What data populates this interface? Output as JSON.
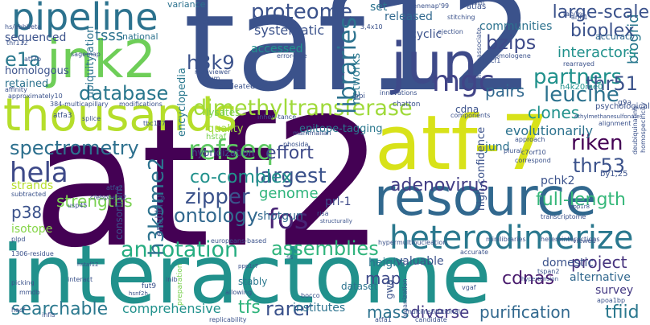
{
  "words": [
    {
      "text": "taf12",
      "color": "#3b528b"
    },
    {
      "text": "atf2",
      "color": "#440154"
    },
    {
      "text": "interactome",
      "color": "#21918c"
    },
    {
      "text": "resource",
      "color": "#31688e"
    },
    {
      "text": "atf-7",
      "color": "#d8e219"
    },
    {
      "text": "thousands",
      "color": "#b5de2b"
    },
    {
      "text": "pipeline",
      "color": "#2c728e"
    },
    {
      "text": "jnk2",
      "color": "#6ece58"
    },
    {
      "text": "heterodimerize",
      "color": "#2a788e"
    },
    {
      "text": "jun",
      "color": "#3e4a89"
    },
    {
      "text": "dimethyltransferase",
      "color": "#9fda3a"
    },
    {
      "text": "annotation",
      "color": "#26ad81"
    },
    {
      "text": "assemblies",
      "color": "#2fb47c"
    },
    {
      "text": "libraries",
      "color": "#2c728e"
    },
    {
      "text": "proteome",
      "color": "#3b528b"
    },
    {
      "text": "database",
      "color": "#2a788e"
    },
    {
      "text": "spectrometry",
      "color": "#2d708e"
    },
    {
      "text": "refseq",
      "color": "#5ec962"
    },
    {
      "text": "hela",
      "color": "#3e4a89"
    },
    {
      "text": "zipper",
      "color": "#3b528b"
    },
    {
      "text": "fos",
      "color": "#482475"
    },
    {
      "text": "largest",
      "color": "#3b528b"
    },
    {
      "text": "mgc",
      "color": "#414487"
    },
    {
      "text": "bzips",
      "color": "#3e4a89"
    },
    {
      "text": "partners",
      "color": "#21918c"
    },
    {
      "text": "leucine",
      "color": "#2c728e"
    },
    {
      "text": "riken",
      "color": "#440154"
    },
    {
      "text": "thr51",
      "color": "#3b528b"
    },
    {
      "text": "thr53",
      "color": "#3b528b"
    },
    {
      "text": "biogrid",
      "color": "#2a788e"
    },
    {
      "text": "bioplex",
      "color": "#3b528b"
    },
    {
      "text": "h3k9",
      "color": "#3b528b"
    },
    {
      "text": "e1a",
      "color": "#2a788e"
    },
    {
      "text": "tsss",
      "color": "#2c728e"
    },
    {
      "text": "adenovirus",
      "color": "#433e85"
    },
    {
      "text": "project",
      "color": "#46337e"
    },
    {
      "text": "h3k9me2",
      "color": "#2c728e"
    },
    {
      "text": "ontology",
      "color": "#31688e"
    },
    {
      "text": "genome",
      "color": "#2fb47c"
    },
    {
      "text": "effort",
      "color": "#3e4a89"
    },
    {
      "text": "co-complex",
      "color": "#21918c"
    },
    {
      "text": "full-length",
      "color": "#35b779"
    },
    {
      "text": "large-scale",
      "color": "#3b528b"
    },
    {
      "text": "interactors",
      "color": "#21918c"
    },
    {
      "text": "pairs",
      "color": "#31688e"
    },
    {
      "text": "clones",
      "color": "#21918c"
    },
    {
      "text": "cdnas",
      "color": "#481a6c"
    },
    {
      "text": "searchable",
      "color": "#2a788e"
    },
    {
      "text": "tfiid",
      "color": "#2a788e"
    },
    {
      "text": "purification",
      "color": "#31688e"
    },
    {
      "text": "diverse",
      "color": "#443983"
    },
    {
      "text": "mass",
      "color": "#2c728e"
    },
    {
      "text": "rarer",
      "color": "#3b528b"
    },
    {
      "text": "tfs",
      "color": "#2fb47c"
    },
    {
      "text": "comprehensive",
      "color": "#21918c"
    },
    {
      "text": "map",
      "color": "#3e4a89"
    },
    {
      "text": "strengths",
      "color": "#7ad151"
    },
    {
      "text": "p38",
      "color": "#3b528b"
    },
    {
      "text": "evolutionarily",
      "color": "#2c728e"
    },
    {
      "text": "systematic",
      "color": "#3b528b"
    },
    {
      "text": "communities",
      "color": "#2c728e"
    },
    {
      "text": "released",
      "color": "#31688e"
    },
    {
      "text": "networks",
      "color": "#2a788e"
    },
    {
      "text": "accessed",
      "color": "#21918c"
    },
    {
      "text": "cyclic",
      "color": "#3b528b"
    },
    {
      "text": "sequenced",
      "color": "#3b528b"
    },
    {
      "text": "homologous",
      "color": "#3b528b"
    },
    {
      "text": "retained",
      "color": "#2c728e"
    },
    {
      "text": "ubiquitylation",
      "color": "#2c728e"
    },
    {
      "text": "encyclopedia",
      "color": "#2a788e"
    },
    {
      "text": "high-confidence",
      "color": "#3b528b"
    },
    {
      "text": "epitope-tagging",
      "color": "#2a788e"
    },
    {
      "text": "quality",
      "color": "#9fda3a"
    },
    {
      "text": "hybridization",
      "color": "#3b528b"
    },
    {
      "text": "jund",
      "color": "#2c728e"
    },
    {
      "text": "pchk2",
      "color": "#3b528b"
    },
    {
      "text": "prl-1",
      "color": "#3e4a89"
    },
    {
      "text": "shotgun",
      "color": "#31688e"
    },
    {
      "text": "height",
      "color": "#2c728e"
    },
    {
      "text": "consortium",
      "color": "#3b528b"
    },
    {
      "text": "enabling",
      "color": "#3b528b"
    },
    {
      "text": "isotope",
      "color": "#86d549"
    },
    {
      "text": "alternative",
      "color": "#31688e"
    },
    {
      "text": "domestic",
      "color": "#3b528b"
    },
    {
      "text": "survey",
      "color": "#443983"
    },
    {
      "text": "valuable",
      "color": "#3b528b"
    },
    {
      "text": "dataset",
      "color": "#2c728e"
    },
    {
      "text": "institutes",
      "color": "#2c728e"
    },
    {
      "text": "gwa",
      "color": "#3b528b"
    },
    {
      "text": "stably",
      "color": "#2a788e"
    },
    {
      "text": "national",
      "color": "#2c728e"
    },
    {
      "text": "variance",
      "color": "#2c728e"
    },
    {
      "text": "set",
      "color": "#2c728e"
    },
    {
      "text": "atlas",
      "color": "#3b528b"
    },
    {
      "text": "accuracy",
      "color": "#31688e"
    },
    {
      "text": "psychological",
      "color": "#3b528b"
    },
    {
      "text": "cdna",
      "color": "#3b528b"
    },
    {
      "text": "approximately10",
      "color": "#3b528b"
    },
    {
      "text": "384-multicapillary",
      "color": "#3b528b"
    },
    {
      "text": "modifications",
      "color": "#3b528b"
    },
    {
      "text": "atfa3",
      "color": "#3b528b"
    },
    {
      "text": "splice",
      "color": "#3b528b"
    },
    {
      "text": "tbc1d7",
      "color": "#3b528b"
    },
    {
      "text": "lysates",
      "color": "#7ad151"
    },
    {
      "text": "hstaf",
      "color": "#7ad151"
    },
    {
      "text": "ppi",
      "color": "#3b528b"
    },
    {
      "text": "chatton",
      "color": "#3b528b"
    },
    {
      "text": "h4k20me0",
      "color": "#21918c"
    },
    {
      "text": "thr112",
      "color": "#3b528b"
    },
    {
      "text": "strands",
      "color": "#b5de2b"
    },
    {
      "text": "subtracted",
      "color": "#3b528b"
    },
    {
      "text": "usp45",
      "color": "#3b528b"
    },
    {
      "text": "plpd",
      "color": "#3b528b"
    },
    {
      "text": "picking",
      "color": "#3b528b"
    },
    {
      "text": "interact",
      "color": "#3b528b"
    },
    {
      "text": "europeans-based",
      "color": "#3b528b"
    },
    {
      "text": "1306-residue",
      "color": "#3b528b"
    },
    {
      "text": "mmdb",
      "color": "#3b528b"
    },
    {
      "text": "hacf",
      "color": "#3b528b"
    },
    {
      "text": "infls",
      "color": "#3b528b"
    },
    {
      "text": "fut9",
      "color": "#3b528b"
    },
    {
      "text": "preparation",
      "color": "#7ad151"
    },
    {
      "text": "allowing",
      "color": "#3b528b"
    },
    {
      "text": "minilibraries",
      "color": "#3b528b"
    },
    {
      "text": "heterointeractions",
      "color": "#3b528b"
    },
    {
      "text": "hypermultinucleation",
      "color": "#3b528b"
    },
    {
      "text": "accurate",
      "color": "#3b528b"
    },
    {
      "text": "viewed",
      "color": "#3b528b"
    },
    {
      "text": "organization",
      "color": "#3b528b"
    },
    {
      "text": "candidate",
      "color": "#3b528b"
    },
    {
      "text": "vgaf",
      "color": "#3b528b"
    },
    {
      "text": "atfa1",
      "color": "#3b528b"
    },
    {
      "text": "nucleated",
      "color": "#3b528b"
    },
    {
      "text": "dubm",
      "color": "#3b528b"
    },
    {
      "text": "corum",
      "color": "#3b528b"
    },
    {
      "text": "mapviewer",
      "color": "#3b528b"
    },
    {
      "text": "ejection",
      "color": "#3b528b"
    },
    {
      "text": "stitching",
      "color": "#3b528b"
    },
    {
      "text": "heteroassociate",
      "color": "#3b528b"
    },
    {
      "text": "homologene",
      "color": "#3b528b"
    },
    {
      "text": "hacf1",
      "color": "#3b528b"
    },
    {
      "text": "arih1",
      "color": "#3b528b"
    },
    {
      "text": "tap/ms",
      "color": "#3b528b"
    },
    {
      "text": "genemap'99",
      "color": "#3b528b"
    },
    {
      "text": "alignment",
      "color": "#3b528b"
    },
    {
      "text": "g9a",
      "color": "#3b528b"
    },
    {
      "text": "deubiquinating",
      "color": "#3b528b"
    },
    {
      "text": "homospecificity",
      "color": "#3b528b"
    },
    {
      "text": "by1,25",
      "color": "#3b528b"
    },
    {
      "text": "transcriptome",
      "color": "#3b528b"
    },
    {
      "text": "components",
      "color": "#3b528b"
    },
    {
      "text": "phosida",
      "color": "#3b528b"
    },
    {
      "text": "mammalian",
      "color": "#3b528b"
    },
    {
      "text": "plural",
      "color": "#3b528b"
    },
    {
      "text": "approach",
      "color": "#3b528b"
    },
    {
      "text": "rearrayed",
      "color": "#3b528b"
    },
    {
      "text": "atfa2",
      "color": "#3b528b"
    },
    {
      "text": "sagemap",
      "color": "#3b528b"
    },
    {
      "text": "atf7b",
      "color": "#3b528b"
    },
    {
      "text": "affinity",
      "color": "#3b528b"
    },
    {
      "text": "innovations",
      "color": "#3b528b"
    },
    {
      "text": "inheri-tance",
      "color": "#3b528b"
    },
    {
      "text": "chica",
      "color": "#3b528b"
    },
    {
      "text": "error-free",
      "color": "#3b528b"
    },
    {
      "text": "herds",
      "color": "#3b528b"
    },
    {
      "text": "3,4x10",
      "color": "#3b528b"
    },
    {
      "text": "correspond",
      "color": "#3b528b"
    },
    {
      "text": "tspan2",
      "color": "#3b528b"
    },
    {
      "text": "apoa1bp",
      "color": "#3b528b"
    },
    {
      "text": "bocco",
      "color": "#3b528b"
    },
    {
      "text": "hypertension",
      "color": "#3b528b"
    },
    {
      "text": "multiinstitutional",
      "color": "#3b528b"
    },
    {
      "text": "c7orf10",
      "color": "#3b528b"
    },
    {
      "text": "hs/ebbbeta",
      "color": "#3b528b"
    },
    {
      "text": "c/ebpbeta2",
      "color": "#3b528b"
    },
    {
      "text": "ethylmethanesulfonate",
      "color": "#3b528b"
    },
    {
      "text": "ppp1r8",
      "color": "#3b528b"
    },
    {
      "text": "ppp1r7",
      "color": "#3b528b"
    },
    {
      "text": "replicability",
      "color": "#3b528b"
    },
    {
      "text": "inib",
      "color": "#3b528b"
    },
    {
      "text": "hstaf12",
      "color": "#3b528b"
    },
    {
      "text": "hsnf2h",
      "color": "#3b528b"
    },
    {
      "text": "structurally",
      "color": "#3b528b"
    },
    {
      "text": "risa",
      "color": "#3b528b"
    },
    {
      "text": "ss",
      "color": "#3b528b"
    }
  ]
}
